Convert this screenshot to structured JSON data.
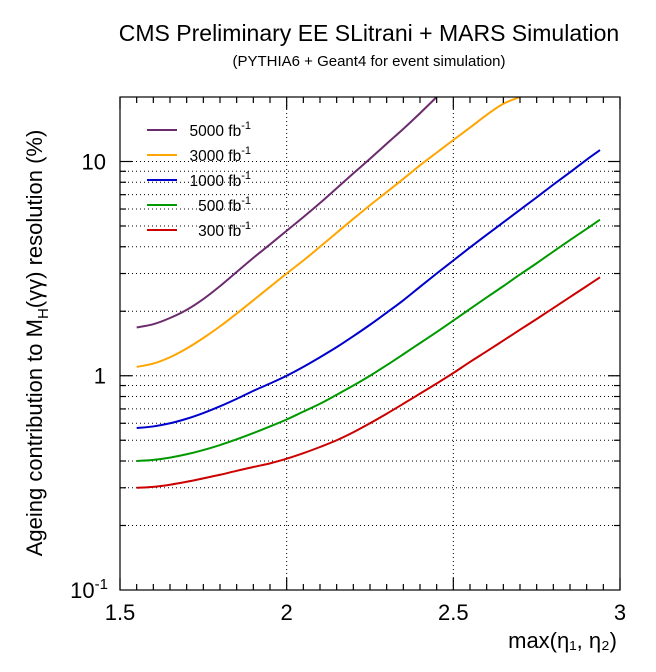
{
  "chart_data": {
    "type": "line",
    "title": "CMS Preliminary EE SLitrani + MARS Simulation",
    "subtitle": "(PYTHIA6 + Geant4 for event simulation)",
    "xlabel": "max(η₁, η₂)",
    "ylabel": {
      "prefix": "Ageing contribution to M",
      "sub": "H",
      "suffix": "(γγ) resolution (%)"
    },
    "xlim": [
      1.5,
      3.0
    ],
    "ylim": [
      0.1,
      20
    ],
    "yscale": "log",
    "x_ticks": [
      {
        "value": 1.5,
        "label": "1.5"
      },
      {
        "value": 2.0,
        "label": "2"
      },
      {
        "value": 2.5,
        "label": "2.5"
      },
      {
        "value": 3.0,
        "label": "3"
      }
    ],
    "y_ticks": [
      {
        "value": 0.1,
        "base": "10",
        "exp": "-1"
      },
      {
        "value": 1,
        "base": "1",
        "exp": ""
      },
      {
        "value": 10,
        "base": "10",
        "exp": ""
      }
    ],
    "grid": true,
    "legend_position": "top-left",
    "series": [
      {
        "name": "5000",
        "unit": "fb",
        "unit_exp": "-1",
        "color": "#6b2c6e",
        "x": [
          1.55,
          1.6,
          1.65,
          1.7,
          1.75,
          1.8,
          1.85,
          1.9,
          1.95,
          2.0,
          2.05,
          2.1,
          2.15,
          2.2,
          2.25,
          2.3,
          2.35,
          2.4,
          2.45
        ],
        "y": [
          1.68,
          1.74,
          1.86,
          2.03,
          2.28,
          2.62,
          3.05,
          3.55,
          4.1,
          4.75,
          5.5,
          6.4,
          7.5,
          8.8,
          10.3,
          12.1,
          14.2,
          16.8,
          20.0
        ]
      },
      {
        "name": "3000",
        "unit": "fb",
        "unit_exp": "-1",
        "color": "#ffa500",
        "x": [
          1.55,
          1.6,
          1.65,
          1.7,
          1.75,
          1.8,
          1.85,
          1.9,
          1.95,
          2.0,
          2.05,
          2.1,
          2.15,
          2.2,
          2.25,
          2.3,
          2.35,
          2.4,
          2.45,
          2.5,
          2.55,
          2.6,
          2.65,
          2.7
        ],
        "y": [
          1.1,
          1.14,
          1.22,
          1.34,
          1.5,
          1.7,
          1.95,
          2.25,
          2.6,
          3.0,
          3.45,
          4.0,
          4.65,
          5.4,
          6.25,
          7.2,
          8.3,
          9.6,
          11.0,
          12.6,
          14.4,
          16.5,
          18.6,
          20.0
        ]
      },
      {
        "name": "1000",
        "unit": "fb",
        "unit_exp": "-1",
        "color": "#0000cc",
        "x": [
          1.55,
          1.6,
          1.65,
          1.7,
          1.75,
          1.8,
          1.85,
          1.9,
          1.95,
          2.0,
          2.05,
          2.1,
          2.15,
          2.2,
          2.25,
          2.3,
          2.35,
          2.4,
          2.45,
          2.5,
          2.55,
          2.6,
          2.65,
          2.7,
          2.75,
          2.8,
          2.85,
          2.9,
          2.94
        ],
        "y": [
          0.57,
          0.58,
          0.6,
          0.63,
          0.67,
          0.72,
          0.78,
          0.85,
          0.92,
          1.0,
          1.1,
          1.22,
          1.36,
          1.53,
          1.73,
          1.97,
          2.25,
          2.6,
          3.0,
          3.45,
          3.97,
          4.55,
          5.2,
          5.95,
          6.8,
          7.8,
          8.9,
          10.2,
          11.3
        ]
      },
      {
        "name": "500",
        "unit": "fb",
        "unit_exp": "-1",
        "color": "#009900",
        "x": [
          1.55,
          1.6,
          1.65,
          1.7,
          1.75,
          1.8,
          1.85,
          1.9,
          1.95,
          2.0,
          2.05,
          2.1,
          2.15,
          2.2,
          2.25,
          2.3,
          2.35,
          2.4,
          2.45,
          2.5,
          2.55,
          2.6,
          2.65,
          2.7,
          2.75,
          2.8,
          2.85,
          2.9,
          2.94
        ],
        "y": [
          0.4,
          0.405,
          0.415,
          0.43,
          0.45,
          0.475,
          0.505,
          0.54,
          0.58,
          0.625,
          0.68,
          0.74,
          0.815,
          0.9,
          1.0,
          1.12,
          1.26,
          1.42,
          1.6,
          1.81,
          2.05,
          2.32,
          2.62,
          2.97,
          3.35,
          3.8,
          4.3,
          4.85,
          5.35
        ]
      },
      {
        "name": "300",
        "unit": "fb",
        "unit_exp": "-1",
        "color": "#cc0000",
        "x": [
          1.55,
          1.6,
          1.65,
          1.7,
          1.75,
          1.8,
          1.85,
          1.9,
          1.95,
          2.0,
          2.05,
          2.1,
          2.15,
          2.2,
          2.25,
          2.3,
          2.35,
          2.4,
          2.45,
          2.5,
          2.55,
          2.6,
          2.65,
          2.7,
          2.75,
          2.8,
          2.85,
          2.9,
          2.94
        ],
        "y": [
          0.3,
          0.303,
          0.31,
          0.32,
          0.332,
          0.345,
          0.36,
          0.375,
          0.39,
          0.41,
          0.435,
          0.465,
          0.5,
          0.545,
          0.6,
          0.665,
          0.74,
          0.825,
          0.92,
          1.03,
          1.16,
          1.3,
          1.46,
          1.64,
          1.84,
          2.07,
          2.33,
          2.62,
          2.88
        ]
      }
    ]
  }
}
